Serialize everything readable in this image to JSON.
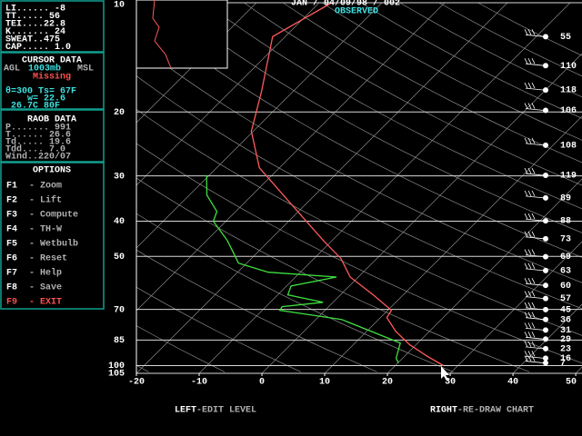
{
  "header": {
    "date": "JAN / 04/09/98 / 002",
    "status": "OBSERVED"
  },
  "indices": [
    "LI......  -8",
    "TT.....  56",
    "TEI....22.8",
    "K.......  24",
    "SWEAT..475",
    "CAP.....  1.0"
  ],
  "cursor_data": {
    "title": "CURSOR DATA",
    "agl": "AGL",
    "level": "1003mb",
    "msl": "MSL",
    "status": "Missing",
    "lines": [
      "θ=300 Ts= 67F",
      "w= 22.6",
      "26.7C      80F"
    ]
  },
  "raob_data": {
    "title": "RAOB DATA",
    "lines": [
      "P.......  991",
      "T......  26.6",
      "Td.....  19.6",
      "Tdd....   7.0",
      "Wind..220/07"
    ]
  },
  "options": {
    "title": "OPTIONS",
    "items": [
      {
        "key": "F1",
        "label": "- Zoom"
      },
      {
        "key": "F2",
        "label": "- Lift"
      },
      {
        "key": "F3",
        "label": "- Compute"
      },
      {
        "key": "F4",
        "label": "- TH-W"
      },
      {
        "key": "F5",
        "label": "- Wetbulb"
      },
      {
        "key": "F6",
        "label": "- Reset"
      },
      {
        "key": "F7",
        "label": "- Help"
      },
      {
        "key": "F8",
        "label": "- Save"
      },
      {
        "key": "F9",
        "label": "- EXIT"
      }
    ]
  },
  "footer": {
    "left": {
      "button": "LEFT",
      "action": "-EDIT LEVEL"
    },
    "right": {
      "button": "RIGHT",
      "action": "-RE-DRAW CHART"
    }
  },
  "chart_data": {
    "type": "skew-t",
    "y_scale": "log",
    "ylim": [
      10,
      105
    ],
    "yticks": [
      10,
      20,
      30,
      40,
      50,
      70,
      85,
      100,
      105
    ],
    "xlim": [
      -20,
      51
    ],
    "xticks": [
      -20,
      -10,
      0,
      10,
      20,
      30,
      40,
      50
    ],
    "series": [
      {
        "color": "#ff5a5a",
        "x": [
          -48,
          -52,
          -45.1,
          -40.3,
          -33.2,
          -22.3,
          -11.4,
          -5.7,
          -1.3,
          5.2,
          10.6,
          11.0,
          14.6,
          19.0,
          23.8,
          27.7
        ],
        "y": [
          10,
          12.4,
          17.5,
          22.6,
          28.5,
          35.9,
          45.2,
          50.7,
          57.0,
          63.8,
          70.4,
          73.7,
          80.4,
          87.6,
          94.5,
          100
        ]
      },
      {
        "color": "#40e040",
        "x": [
          -40.4,
          -37.2,
          -33.0,
          -32.0,
          -26.7,
          -21.3,
          -15.1,
          -3.5,
          -9.3,
          -8.4,
          -1.6,
          -7.4,
          -7.2,
          4.1,
          17.2,
          19.0,
          20.1
        ],
        "y": [
          29.9,
          33.9,
          37.6,
          40.0,
          45.2,
          52.2,
          55.3,
          57.0,
          60.3,
          63.8,
          66.9,
          68.8,
          70.4,
          74.6,
          86.6,
          95.5,
          98.3
        ]
      }
    ],
    "wind_levels": [
      12.4,
      14.9,
      17.4,
      19.8,
      24.7,
      29.9,
      34.5,
      39.9,
      44.7,
      50.1,
      54.7,
      60.1,
      65.3,
      70.1,
      74.6,
      79.8,
      84.5,
      89.8,
      95.4,
      98.3
    ],
    "wind_labels": [
      55,
      110,
      118,
      106,
      108,
      119,
      89,
      88,
      73,
      69,
      63,
      60,
      57,
      45,
      36,
      31,
      29,
      23,
      16,
      7
    ]
  }
}
